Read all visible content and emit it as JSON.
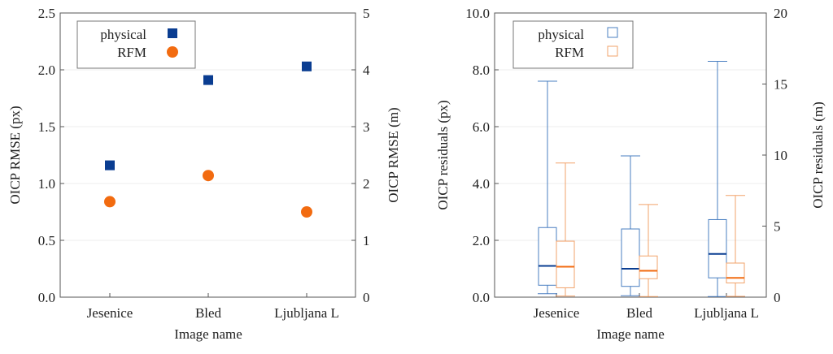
{
  "colors": {
    "physical": "#0a3d91",
    "rfm": "#f26b10",
    "physical_box": "#4a7fc1",
    "rfm_box": "#f2a36b",
    "axis": "#555555",
    "grid": "#ececec"
  },
  "chart_data": [
    {
      "type": "scatter",
      "categories": [
        "Jesenice",
        "Bled",
        "Ljubljana L"
      ],
      "xlabel": "Image name",
      "ylabel": "OICP RMSE (px)",
      "ylim": [
        0,
        2.5
      ],
      "yticks": [
        "0.0",
        "0.5",
        "1.0",
        "1.5",
        "2.0",
        "2.5"
      ],
      "y2label": "OICP RMSE (m)",
      "y2lim": [
        0,
        5
      ],
      "y2ticks": [
        "0",
        "1",
        "2",
        "3",
        "4",
        "5"
      ],
      "legend": "top-left",
      "grid": true,
      "series": [
        {
          "name": "physical",
          "marker": "square",
          "values": [
            1.16,
            1.91,
            2.03
          ]
        },
        {
          "name": "RFM",
          "marker": "circle",
          "values": [
            0.84,
            1.07,
            0.75
          ]
        }
      ]
    },
    {
      "type": "box",
      "categories": [
        "Jesenice",
        "Bled",
        "Ljubljana L"
      ],
      "xlabel": "Image name",
      "ylabel": "OICP residuals (px)",
      "ylim": [
        0,
        10
      ],
      "yticks": [
        "0.0",
        "2.0",
        "4.0",
        "6.0",
        "8.0",
        "10.0"
      ],
      "y2label": "OICP residuals (m)",
      "y2lim": [
        0,
        20
      ],
      "y2ticks": [
        "0",
        "5",
        "10",
        "15",
        "20"
      ],
      "legend": "top-left",
      "grid": true,
      "series": [
        {
          "name": "physical",
          "boxes": [
            {
              "min": 0.12,
              "q1": 0.42,
              "median": 1.1,
              "q3": 2.45,
              "max": 7.6
            },
            {
              "min": 0.05,
              "q1": 0.38,
              "median": 1.0,
              "q3": 2.4,
              "max": 4.97
            },
            {
              "min": 0.02,
              "q1": 0.68,
              "median": 1.52,
              "q3": 2.73,
              "max": 8.3
            }
          ]
        },
        {
          "name": "RFM",
          "boxes": [
            {
              "min": 0.04,
              "q1": 0.33,
              "median": 1.07,
              "q3": 1.97,
              "max": 4.72
            },
            {
              "min": 0.02,
              "q1": 0.65,
              "median": 0.93,
              "q3": 1.45,
              "max": 3.26
            },
            {
              "min": 0.03,
              "q1": 0.5,
              "median": 0.68,
              "q3": 1.2,
              "max": 3.58
            }
          ]
        }
      ]
    }
  ]
}
